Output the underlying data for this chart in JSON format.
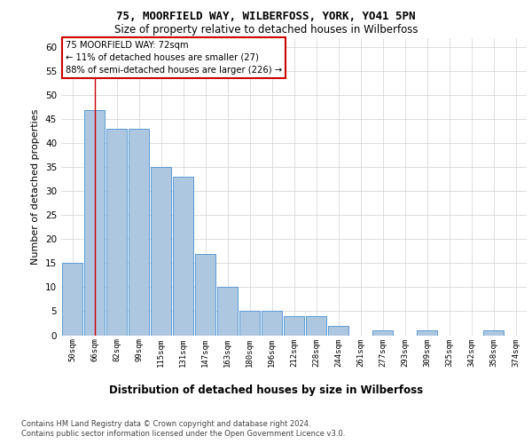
{
  "title1": "75, MOORFIELD WAY, WILBERFOSS, YORK, YO41 5PN",
  "title2": "Size of property relative to detached houses in Wilberfoss",
  "xlabel": "Distribution of detached houses by size in Wilberfoss",
  "ylabel": "Number of detached properties",
  "bar_labels": [
    "50sqm",
    "66sqm",
    "82sqm",
    "99sqm",
    "115sqm",
    "131sqm",
    "147sqm",
    "163sqm",
    "180sqm",
    "196sqm",
    "212sqm",
    "228sqm",
    "244sqm",
    "261sqm",
    "277sqm",
    "293sqm",
    "309sqm",
    "325sqm",
    "342sqm",
    "358sqm",
    "374sqm"
  ],
  "bar_values": [
    15,
    47,
    43,
    43,
    35,
    33,
    17,
    10,
    5,
    5,
    4,
    4,
    2,
    0,
    1,
    0,
    1,
    0,
    0,
    1,
    0
  ],
  "bar_color": "#aec7e0",
  "bar_edge_color": "#5b9bd5",
  "red_line_x": 1.0,
  "annotation_title": "75 MOORFIELD WAY: 72sqm",
  "annotation_line1": "← 11% of detached houses are smaller (27)",
  "annotation_line2": "88% of semi-detached houses are larger (226) →",
  "annotation_box_color": "#ffffff",
  "annotation_box_edge_color": "#cc0000",
  "ylim": [
    0,
    62
  ],
  "yticks": [
    0,
    5,
    10,
    15,
    20,
    25,
    30,
    35,
    40,
    45,
    50,
    55,
    60
  ],
  "footer1": "Contains HM Land Registry data © Crown copyright and database right 2024.",
  "footer2": "Contains public sector information licensed under the Open Government Licence v3.0.",
  "background_color": "#ffffff",
  "grid_color": "#d0d0d0"
}
